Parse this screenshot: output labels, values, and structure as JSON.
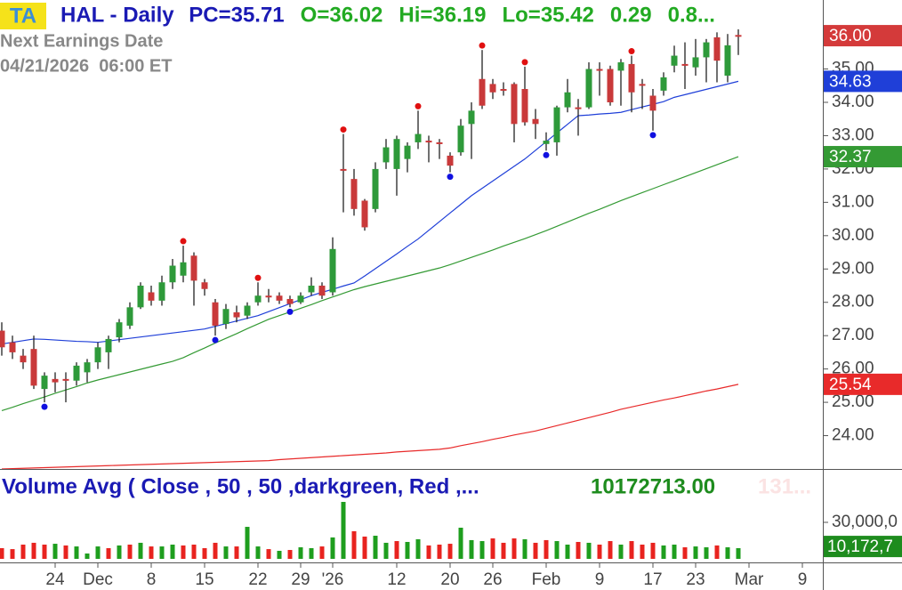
{
  "chart_data": [
    {
      "type": "candlestick",
      "badge": "TA",
      "title": "HAL - Daily",
      "header": [
        {
          "text": "PC=35.71",
          "color": "#1a1ab4"
        },
        {
          "text": "O=36.02",
          "color": "#22aa22"
        },
        {
          "text": "Hi=36.19",
          "color": "#22aa22"
        },
        {
          "text": "Lo=35.42",
          "color": "#22aa22"
        },
        {
          "text": "0.29",
          "color": "#22aa22"
        },
        {
          "text": "0.8...",
          "color": "#22aa22"
        }
      ],
      "notes": [
        "Next Earnings Date",
        "04/21/2026  06:00 ET"
      ],
      "categories": [
        null,
        null,
        null,
        null,
        null,
        "24",
        null,
        null,
        null,
        "Dec",
        null,
        null,
        null,
        null,
        "8",
        null,
        null,
        null,
        null,
        "15",
        null,
        null,
        null,
        null,
        "22",
        null,
        null,
        null,
        "29",
        null,
        null,
        "'26",
        null,
        null,
        null,
        null,
        null,
        "12",
        null,
        null,
        null,
        null,
        "20",
        null,
        null,
        null,
        "26",
        null,
        null,
        null,
        null,
        "Feb",
        null,
        null,
        null,
        null,
        "9",
        null,
        null,
        null,
        null,
        "17",
        null,
        null,
        null,
        "23",
        null,
        null,
        null,
        null,
        "Mar",
        null,
        null,
        null,
        null,
        "9"
      ],
      "open": [
        27.15,
        26.8,
        26.4,
        26.6,
        25.4,
        25.7,
        25.7,
        25.65,
        25.9,
        26.2,
        26.5,
        26.95,
        27.3,
        27.85,
        28.3,
        28.05,
        28.6,
        28.8,
        29.4,
        28.6,
        28.0,
        27.35,
        27.7,
        27.6,
        28.0,
        28.2,
        28.2,
        28.1,
        28.0,
        28.3,
        28.5,
        28.3,
        32.0,
        31.7,
        31.05,
        30.8,
        32.2,
        32.0,
        32.3,
        32.8,
        32.85,
        32.8,
        32.4,
        32.5,
        33.35,
        34.7,
        34.55,
        34.4,
        34.55,
        34.4,
        33.5,
        32.75,
        32.8,
        33.85,
        33.85,
        33.85,
        35.0,
        35.0,
        34.95,
        35.15,
        34.55,
        34.2,
        34.35,
        35.1,
        35.15,
        35.05,
        35.35,
        35.95,
        34.8,
        36.02,
        null,
        null,
        null,
        null,
        null,
        null
      ],
      "high": [
        27.4,
        27.0,
        26.6,
        27.0,
        25.9,
        25.9,
        25.9,
        26.2,
        26.3,
        26.8,
        27.0,
        27.5,
        28.0,
        28.6,
        28.5,
        28.8,
        29.3,
        29.7,
        29.5,
        28.7,
        28.1,
        27.95,
        27.9,
        28.0,
        28.6,
        28.4,
        28.3,
        28.2,
        28.3,
        28.75,
        28.6,
        29.95,
        33.05,
        32.0,
        31.1,
        32.2,
        32.9,
        33.0,
        32.8,
        33.75,
        33.0,
        32.9,
        32.5,
        33.5,
        34.0,
        35.57,
        34.7,
        34.6,
        34.6,
        35.07,
        33.8,
        33.1,
        33.9,
        34.7,
        34.1,
        35.2,
        35.2,
        35.1,
        35.3,
        35.4,
        34.7,
        34.4,
        34.9,
        35.7,
        35.8,
        35.9,
        35.9,
        36.1,
        36.05,
        36.19,
        null,
        null,
        null,
        null,
        null,
        null
      ],
      "low": [
        26.4,
        26.3,
        26.0,
        25.4,
        25.0,
        25.3,
        25.0,
        25.5,
        25.6,
        26.0,
        26.0,
        26.8,
        27.2,
        27.8,
        27.9,
        27.9,
        28.4,
        28.6,
        27.9,
        28.2,
        27.0,
        27.2,
        27.4,
        27.5,
        27.9,
        28.0,
        27.95,
        27.85,
        27.95,
        28.2,
        28.1,
        28.2,
        30.7,
        30.6,
        30.15,
        30.7,
        32.0,
        31.2,
        31.9,
        32.6,
        32.2,
        32.3,
        31.9,
        32.4,
        32.3,
        33.8,
        34.1,
        34.2,
        32.8,
        33.3,
        32.9,
        32.55,
        32.4,
        33.7,
        33.0,
        33.8,
        34.2,
        33.9,
        33.9,
        33.7,
        33.8,
        33.15,
        34.2,
        34.9,
        34.4,
        34.8,
        34.6,
        34.6,
        34.6,
        35.42,
        null,
        null,
        null,
        null,
        null,
        null
      ],
      "close": [
        26.65,
        26.5,
        26.2,
        25.5,
        25.8,
        25.6,
        25.65,
        26.1,
        26.2,
        26.65,
        26.9,
        27.4,
        27.85,
        28.5,
        28.05,
        28.6,
        29.1,
        29.2,
        28.65,
        28.4,
        27.3,
        27.8,
        27.55,
        27.9,
        28.2,
        28.18,
        28.05,
        27.95,
        28.2,
        28.5,
        28.2,
        29.6,
        31.95,
        30.8,
        30.25,
        32.0,
        32.65,
        32.9,
        32.7,
        33.05,
        32.8,
        32.75,
        32.1,
        33.3,
        33.75,
        33.9,
        34.3,
        34.35,
        33.35,
        33.4,
        33.35,
        32.85,
        33.85,
        34.3,
        33.8,
        35.0,
        34.98,
        34.0,
        35.2,
        34.3,
        34.5,
        33.75,
        34.75,
        35.4,
        35.12,
        35.35,
        35.8,
        35.25,
        35.71,
        36.0,
        null,
        null,
        null,
        null,
        null,
        null
      ],
      "up_color": "#2e9a3a",
      "down_color": "#c9393a",
      "wick_color": "#222222",
      "last_label": "36.00",
      "last_box_color": "#d43a3a",
      "swing_high_color": "#e01010",
      "swing_low_color": "#1010e0",
      "swing_highs": [
        null,
        null,
        null,
        null,
        null,
        null,
        null,
        null,
        null,
        null,
        null,
        null,
        null,
        null,
        null,
        null,
        null,
        29.7,
        null,
        null,
        null,
        null,
        null,
        null,
        28.6,
        null,
        null,
        null,
        null,
        null,
        null,
        null,
        33.05,
        null,
        null,
        null,
        null,
        null,
        null,
        33.75,
        null,
        null,
        null,
        null,
        null,
        35.57,
        null,
        null,
        null,
        35.07,
        null,
        null,
        null,
        null,
        null,
        null,
        null,
        null,
        null,
        35.4,
        null,
        null,
        null,
        null,
        null,
        null,
        null,
        null,
        null,
        null,
        null,
        null,
        null,
        null,
        null,
        null
      ],
      "swing_lows": [
        null,
        null,
        null,
        null,
        25.0,
        null,
        null,
        null,
        null,
        null,
        null,
        null,
        null,
        null,
        null,
        null,
        null,
        null,
        null,
        null,
        27.0,
        null,
        null,
        null,
        null,
        null,
        null,
        27.85,
        null,
        null,
        null,
        null,
        null,
        null,
        null,
        null,
        null,
        null,
        null,
        null,
        null,
        null,
        31.9,
        null,
        null,
        null,
        null,
        null,
        null,
        null,
        null,
        32.55,
        null,
        null,
        null,
        null,
        null,
        null,
        null,
        null,
        null,
        33.15,
        null,
        null,
        null,
        null,
        null,
        null,
        null,
        null,
        null,
        null,
        null,
        null,
        null,
        null
      ],
      "series": [
        {
          "color": "#1f3fd8",
          "last_label": "34.63",
          "values": [
            26.75,
            26.8,
            26.85,
            26.9,
            26.89,
            26.87,
            26.85,
            26.83,
            26.82,
            26.8,
            26.84,
            26.88,
            26.92,
            26.96,
            27.0,
            27.04,
            27.08,
            27.12,
            27.16,
            27.2,
            27.28,
            27.36,
            27.44,
            27.52,
            27.6,
            27.72,
            27.84,
            27.96,
            28.08,
            28.2,
            28.3,
            28.39,
            28.49,
            28.58,
            28.79,
            29.01,
            29.23,
            29.45,
            29.68,
            29.9,
            30.16,
            30.42,
            30.68,
            30.94,
            31.2,
            31.42,
            31.64,
            31.86,
            32.08,
            32.3,
            32.56,
            32.82,
            33.08,
            33.34,
            33.6,
            33.62,
            33.65,
            33.67,
            33.7,
            33.78,
            33.86,
            33.94,
            34.02,
            34.15,
            34.23,
            34.31,
            34.39,
            34.47,
            34.55,
            34.63,
            null,
            null,
            null,
            null,
            null,
            null
          ]
        },
        {
          "color": "#349a34",
          "last_label": "32.37",
          "values": [
            24.75,
            24.85,
            24.96,
            25.06,
            25.16,
            25.27,
            25.37,
            25.47,
            25.58,
            25.67,
            25.75,
            25.83,
            25.91,
            25.99,
            26.07,
            26.15,
            26.23,
            26.34,
            26.49,
            26.63,
            26.78,
            26.92,
            27.06,
            27.21,
            27.35,
            27.49,
            27.6,
            27.71,
            27.82,
            27.93,
            28.05,
            28.16,
            28.27,
            28.38,
            28.47,
            28.55,
            28.63,
            28.71,
            28.79,
            28.87,
            28.95,
            29.03,
            29.13,
            29.24,
            29.35,
            29.46,
            29.57,
            29.69,
            29.8,
            29.91,
            30.03,
            30.15,
            30.28,
            30.41,
            30.54,
            30.67,
            30.79,
            30.92,
            31.05,
            31.17,
            31.29,
            31.41,
            31.53,
            31.65,
            31.77,
            31.89,
            32.01,
            32.13,
            32.25,
            32.37,
            null,
            null,
            null,
            null,
            null,
            null
          ]
        },
        {
          "color": "#e82a2a",
          "last_label": "25.54",
          "values": [
            23.0,
            23.01,
            23.02,
            23.03,
            23.04,
            23.05,
            23.06,
            23.07,
            23.08,
            23.09,
            23.1,
            23.11,
            23.12,
            23.13,
            23.14,
            23.15,
            23.16,
            23.17,
            23.18,
            23.19,
            23.2,
            23.21,
            23.22,
            23.23,
            23.24,
            23.25,
            23.28,
            23.3,
            23.32,
            23.34,
            23.36,
            23.38,
            23.4,
            23.42,
            23.44,
            23.46,
            23.48,
            23.51,
            23.53,
            23.55,
            23.57,
            23.59,
            23.63,
            23.7,
            23.76,
            23.82,
            23.89,
            23.95,
            24.02,
            24.08,
            24.14,
            24.22,
            24.3,
            24.38,
            24.46,
            24.54,
            24.62,
            24.7,
            24.79,
            24.86,
            24.93,
            25.0,
            25.07,
            25.13,
            25.2,
            25.27,
            25.34,
            25.4,
            25.47,
            25.54,
            null,
            null,
            null,
            null,
            null,
            null
          ]
        }
      ],
      "ylim": [
        23.0,
        37.07
      ],
      "yticks": [
        {
          "value": 24,
          "label": "24.00"
        },
        {
          "value": 25,
          "label": "25.00"
        },
        {
          "value": 26,
          "label": "26.00"
        },
        {
          "value": 27,
          "label": "27.00"
        },
        {
          "value": 28,
          "label": "28.00"
        },
        {
          "value": 29,
          "label": "29.00"
        },
        {
          "value": 30,
          "label": "30.00"
        },
        {
          "value": 31,
          "label": "31.00"
        },
        {
          "value": 32,
          "label": "32.00"
        },
        {
          "value": 33,
          "label": "33.00"
        },
        {
          "value": 34,
          "label": "34.00"
        },
        {
          "value": 35,
          "label": "35.00"
        }
      ]
    },
    {
      "type": "bar",
      "title": "Volume Avg ( Close , 50 , 50 ,darkgreen, Red ,...",
      "average": 10172713,
      "average_label": "10172713.00",
      "average_axis_label": "10,172,7",
      "average_color": "#1e8c1e",
      "faded_label": "131...",
      "values": [
        8800000,
        8000000,
        11700000,
        13200000,
        11700000,
        12400000,
        11000000,
        10200000,
        4400000,
        10200000,
        8800000,
        11000000,
        11700000,
        13200000,
        10200000,
        10200000,
        11700000,
        11000000,
        11700000,
        8800000,
        13200000,
        10200000,
        10200000,
        26300000,
        10200000,
        8000000,
        6600000,
        7300000,
        9500000,
        8800000,
        10200000,
        17600000,
        46800000,
        22700000,
        18300000,
        19000000,
        13200000,
        14600000,
        13900000,
        16100000,
        11000000,
        11700000,
        12400000,
        25600000,
        15400000,
        14600000,
        16800000,
        13200000,
        16800000,
        16100000,
        13200000,
        15400000,
        14600000,
        11700000,
        13900000,
        13200000,
        11700000,
        14600000,
        11700000,
        14600000,
        11700000,
        13200000,
        11000000,
        11700000,
        9500000,
        10200000,
        9500000,
        11000000,
        9500000,
        8800000,
        null,
        null,
        null,
        null,
        null,
        null
      ],
      "colors": [
        "#e8231f",
        "#e8231f",
        "#e8231f",
        "#e8231f",
        "#e8231f",
        "#1e9e1e",
        "#e8231f",
        "#1e9e1e",
        "#1e9e1e",
        "#1e9e1e",
        "#e8231f",
        "#1e9e1e",
        "#e8231f",
        "#1e9e1e",
        "#e8231f",
        "#1e9e1e",
        "#1e9e1e",
        "#e8231f",
        "#e8231f",
        "#e8231f",
        "#e8231f",
        "#1e9e1e",
        "#e8231f",
        "#1e9e1e",
        "#1e9e1e",
        "#e8231f",
        "#1e9e1e",
        "#e8231f",
        "#1e9e1e",
        "#1e9e1e",
        "#e8231f",
        "#1e9e1e",
        "#1e9e1e",
        "#e8231f",
        "#e8231f",
        "#1e9e1e",
        "#1e9e1e",
        "#e8231f",
        "#1e9e1e",
        "#1e9e1e",
        "#e8231f",
        "#e8231f",
        "#e8231f",
        "#1e9e1e",
        "#1e9e1e",
        "#1e9e1e",
        "#e8231f",
        "#e8231f",
        "#e8231f",
        "#1e9e1e",
        "#e8231f",
        "#e8231f",
        "#1e9e1e",
        "#1e9e1e",
        "#e8231f",
        "#1e9e1e",
        "#e8231f",
        "#e8231f",
        "#1e9e1e",
        "#e8231f",
        "#e8231f",
        "#e8231f",
        "#1e9e1e",
        "#1e9e1e",
        "#e8231f",
        "#1e9e1e",
        "#1e9e1e",
        "#e8231f",
        "#1e9e1e",
        "#1e9e1e",
        null,
        null,
        null,
        null,
        null,
        null
      ],
      "ylim": [
        0,
        70200000
      ],
      "yticks": [
        {
          "value": 30000000,
          "label": "30,000,0"
        }
      ]
    }
  ]
}
